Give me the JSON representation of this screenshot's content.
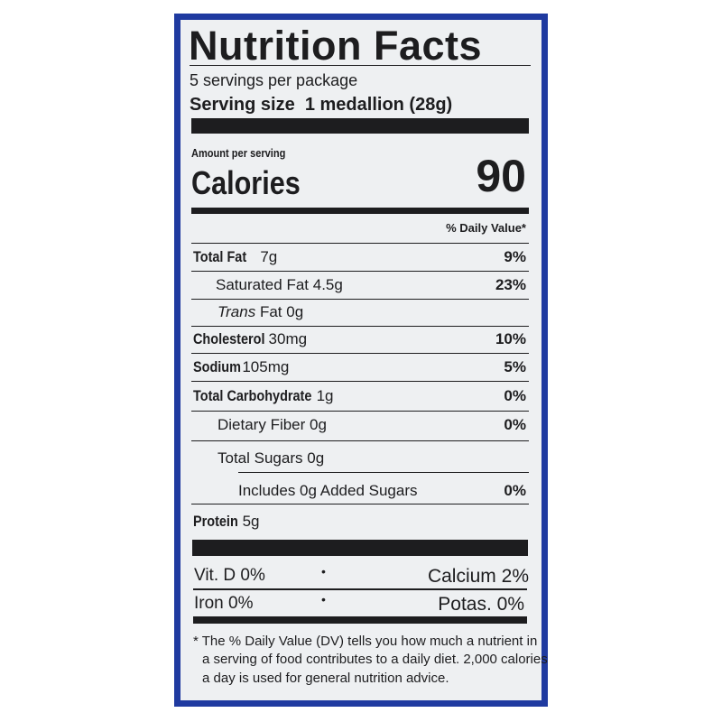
{
  "header": {
    "title": "Nutrition Facts",
    "servings_per_package": "5 servings per package",
    "serving_size_label": "Serving size",
    "serving_size_value": "1 medallion (28g)"
  },
  "calories": {
    "amount_per_serving": "Amount per serving",
    "label": "Calories",
    "value": "90"
  },
  "daily_value_header": "% Daily Value*",
  "nutrients": [
    {
      "name": "Total Fat",
      "amount": "7g",
      "dv": "9%"
    },
    {
      "name": "Saturated Fat",
      "amount": "4.5g",
      "dv": "23%"
    },
    {
      "name_italic": "Trans",
      "name": "Fat",
      "amount": "0g",
      "dv": ""
    },
    {
      "name": "Cholesterol",
      "amount": "30mg",
      "dv": "10%"
    },
    {
      "name": "Sodium",
      "amount": "105mg",
      "dv": "5%"
    },
    {
      "name": "Total Carbohydrate",
      "amount": "1g",
      "dv": "0%"
    },
    {
      "name": "Dietary Fiber",
      "amount": "0g",
      "dv": "0%"
    },
    {
      "name": "Total Sugars",
      "amount": "0g",
      "dv": ""
    },
    {
      "name": "Includes 0g Added Sugars",
      "amount": "",
      "dv": "0%"
    },
    {
      "name": "Protein",
      "amount": "5g",
      "dv": ""
    }
  ],
  "vitamins": [
    {
      "left": "Vit. D 0%",
      "right": "Calcium 2%"
    },
    {
      "left": "Iron 0%",
      "right": "Potas. 0%"
    }
  ],
  "separator": "•",
  "footnote": [
    "* The % Daily Value (DV) tells you how much a nutrient in",
    "a serving of food contributes to a daily diet. 2,000 calories",
    "a day is used for general nutrition advice."
  ],
  "colors": {
    "border": "#1f3aa0",
    "background": "#eef0f2",
    "ink": "#1d1d1f"
  }
}
